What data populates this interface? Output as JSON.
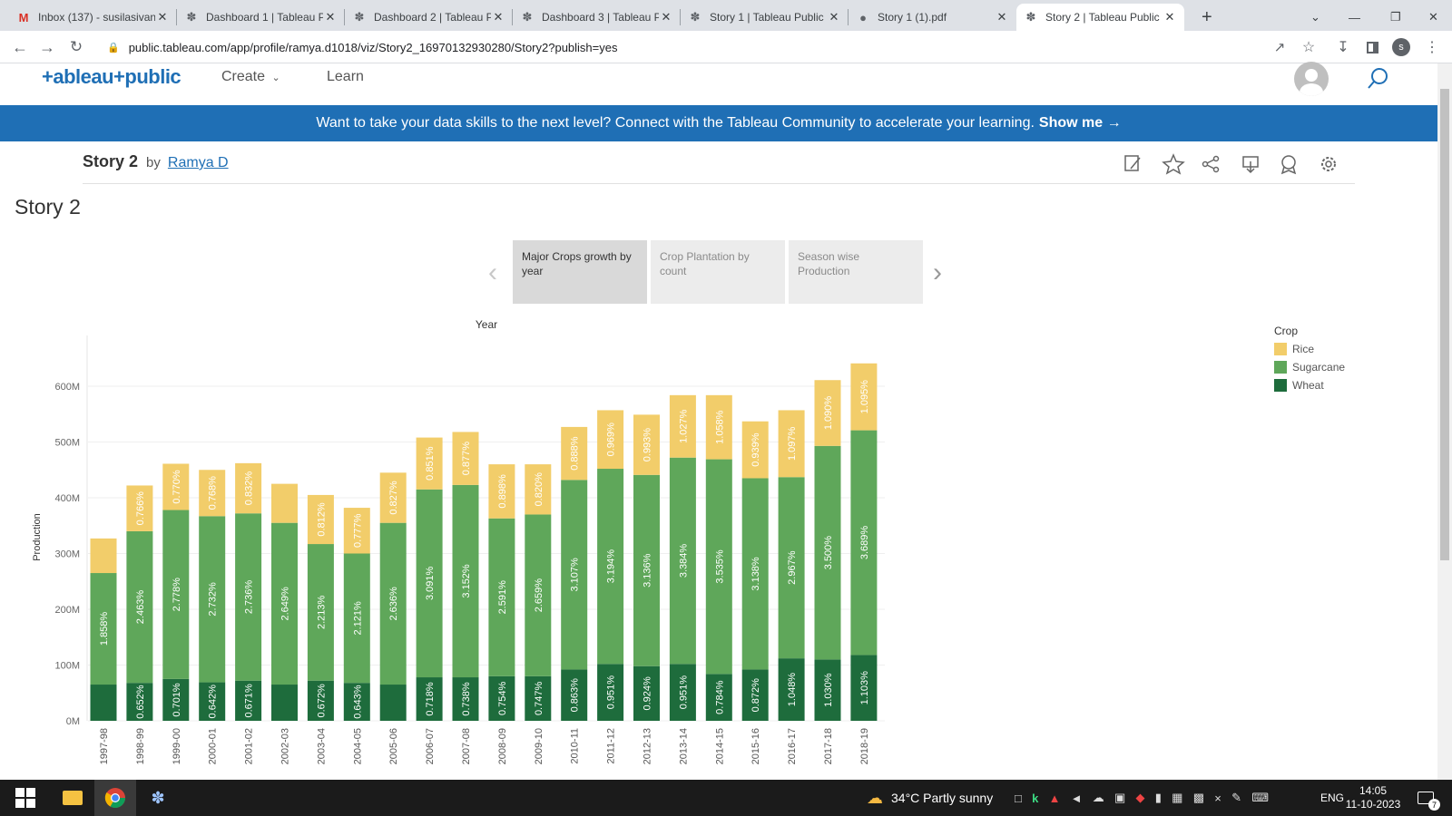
{
  "browser": {
    "tabs": [
      {
        "title": "Inbox (137) - susilasivan",
        "icon": "gmail-icon"
      },
      {
        "title": "Dashboard 1 | Tableau P",
        "icon": "tableau-icon"
      },
      {
        "title": "Dashboard 2 | Tableau P",
        "icon": "tableau-icon"
      },
      {
        "title": "Dashboard 3 | Tableau P",
        "icon": "tableau-icon"
      },
      {
        "title": "Story 1 | Tableau Public",
        "icon": "tableau-icon"
      },
      {
        "title": "Story 1 (1).pdf",
        "icon": "globe-icon"
      },
      {
        "title": "Story 2 | Tableau Public",
        "icon": "tableau-icon",
        "active": true
      }
    ],
    "url": "public.tableau.com/app/profile/ramya.d1018/viz/Story2_16970132930280/Story2?publish=yes",
    "profile_initial": "s"
  },
  "header": {
    "logo": "+ableau+public",
    "nav": [
      "Create",
      "Learn"
    ]
  },
  "banner": {
    "text": "Want to take your data skills to the next level? Connect with the Tableau Community to accelerate your learning.",
    "link": "Show me →"
  },
  "viz": {
    "title": "Story 2",
    "by": "by",
    "author": "Ramya D",
    "story_title": "Story 2",
    "story_points": [
      {
        "label": "Major Crops growth by year",
        "active": true
      },
      {
        "label": "Crop Plantation by count",
        "active": false
      },
      {
        "label": "Season wise Production",
        "active": false
      }
    ]
  },
  "chart_data": {
    "type": "bar",
    "stacked": true,
    "title": "Year",
    "xlabel": "",
    "ylabel": "Production",
    "ylim": [
      0,
      650000000
    ],
    "yticks": [
      "0M",
      "100M",
      "200M",
      "300M",
      "400M",
      "500M",
      "600M"
    ],
    "grid": true,
    "legend_title": "Crop",
    "legend_position": "right",
    "colors": {
      "Rice": "#f2cd6a",
      "Sugarcane": "#5fa75a",
      "Wheat": "#1e6c3c"
    },
    "categories": [
      "1997-98",
      "1998-99",
      "1999-00",
      "2000-01",
      "2001-02",
      "2002-03",
      "2003-04",
      "2004-05",
      "2005-06",
      "2006-07",
      "2007-08",
      "2008-09",
      "2009-10",
      "2010-11",
      "2011-12",
      "2012-13",
      "2013-14",
      "2014-15",
      "2015-16",
      "2016-17",
      "2017-18",
      "2018-19"
    ],
    "series": [
      {
        "name": "Wheat",
        "values": [
          65,
          68,
          75,
          69,
          72,
          65,
          72,
          68,
          65,
          78,
          78,
          80,
          80,
          92,
          102,
          98,
          102,
          84,
          92,
          112,
          110,
          118
        ],
        "labels": [
          "",
          "0.652%",
          "0.701%",
          "0.642%",
          "0.671%",
          "",
          "0.672%",
          "0.643%",
          "",
          "0.718%",
          "0.738%",
          "0.754%",
          "0.747%",
          "0.863%",
          "0.951%",
          "0.924%",
          "0.951%",
          "0.784%",
          "0.872%",
          "1.048%",
          "1.030%",
          "1.103%"
        ]
      },
      {
        "name": "Sugarcane",
        "values": [
          200,
          272,
          303,
          298,
          300,
          290,
          245,
          232,
          290,
          337,
          345,
          283,
          290,
          340,
          350,
          343,
          370,
          385,
          343,
          325,
          383,
          403
        ],
        "labels": [
          "1.858%",
          "2.463%",
          "2.778%",
          "2.732%",
          "2.736%",
          "2.649%",
          "2.213%",
          "2.121%",
          "2.636%",
          "3.091%",
          "3.152%",
          "2.591%",
          "2.659%",
          "3.107%",
          "3.194%",
          "3.136%",
          "3.384%",
          "3.535%",
          "3.138%",
          "2.967%",
          "3.500%",
          "3.689%"
        ]
      },
      {
        "name": "Rice",
        "values": [
          62,
          82,
          83,
          83,
          90,
          70,
          88,
          82,
          90,
          93,
          95,
          97,
          90,
          95,
          105,
          108,
          112,
          115,
          102,
          120,
          118,
          120
        ],
        "labels": [
          "",
          "0.766%",
          "0.770%",
          "0.768%",
          "0.832%",
          "",
          "0.812%",
          "0.777%",
          "0.827%",
          "0.851%",
          "0.877%",
          "0.898%",
          "0.820%",
          "0.888%",
          "0.969%",
          "0.993%",
          "1.027%",
          "1.058%",
          "0.939%",
          "1.097%",
          "1.090%",
          "1.095%"
        ]
      }
    ],
    "value_unit": "M"
  },
  "taskbar": {
    "weather": "34°C  Partly sunny",
    "lang": "ENG",
    "time": "14:05",
    "date": "11-10-2023",
    "notif": "7"
  }
}
